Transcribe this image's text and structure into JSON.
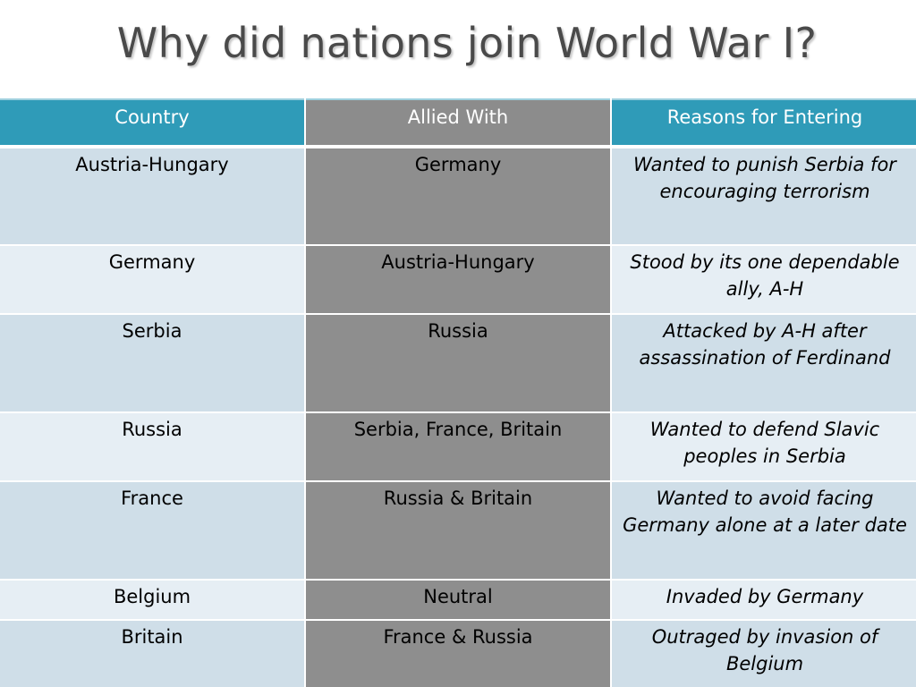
{
  "title": "Why did nations join World War I?",
  "table": {
    "headers": [
      "Country",
      "Allied With",
      "Reasons for Entering"
    ],
    "rows": [
      {
        "country": "Austria-Hungary",
        "allied_with": "Germany",
        "reason": "Wanted to punish Serbia for encouraging terrorism"
      },
      {
        "country": "Germany",
        "allied_with": "Austria-Hungary",
        "reason": "Stood by its one dependable ally, A-H"
      },
      {
        "country": "Serbia",
        "allied_with": "Russia",
        "reason": "Attacked by A-H after assassination of Ferdinand"
      },
      {
        "country": "Russia",
        "allied_with": "Serbia, France, Britain",
        "reason": "Wanted to defend Slavic peoples in Serbia"
      },
      {
        "country": "France",
        "allied_with": "Russia & Britain",
        "reason": "Wanted to avoid facing Germany alone at a later date"
      },
      {
        "country": "Belgium",
        "allied_with": "Neutral",
        "reason": "Invaded by Germany"
      },
      {
        "country": "Britain",
        "allied_with": "France & Russia",
        "reason": "Outraged by invasion of Belgium"
      }
    ]
  },
  "colors": {
    "header_accent": "#2f9bb8",
    "header_gray": "#8c8c8c",
    "row_dark": "#cfdee8",
    "row_light": "#e6eef4",
    "middle_column": "#8e8e8e",
    "title_text": "#4a4a4a"
  }
}
